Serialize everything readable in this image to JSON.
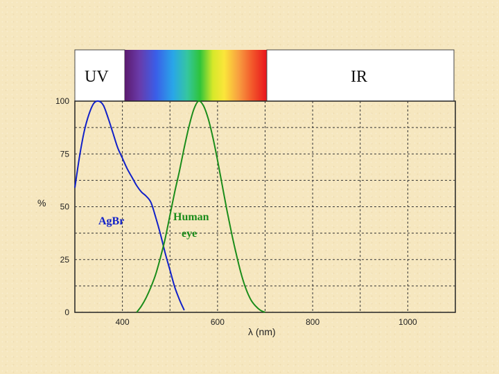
{
  "chart_data": {
    "type": "line",
    "title": "",
    "xlabel": "λ (nm)",
    "ylabel": "%",
    "xlim": [
      300,
      1100
    ],
    "ylim": [
      0,
      100
    ],
    "xticks": [
      400,
      600,
      800,
      1000
    ],
    "yticks": [
      0,
      25,
      50,
      75,
      100
    ],
    "grid": true,
    "spectrum_bands": {
      "uv_label": "UV",
      "ir_label": "IR",
      "visible_range": [
        400,
        700
      ]
    },
    "series": [
      {
        "name": "AgBr",
        "color": "#1020c8",
        "points": [
          [
            300,
            59
          ],
          [
            310,
            74
          ],
          [
            320,
            86
          ],
          [
            330,
            94
          ],
          [
            340,
            99
          ],
          [
            350,
            100
          ],
          [
            360,
            98
          ],
          [
            370,
            92
          ],
          [
            380,
            85
          ],
          [
            390,
            78
          ],
          [
            400,
            73
          ],
          [
            410,
            68
          ],
          [
            420,
            64
          ],
          [
            430,
            60
          ],
          [
            440,
            57
          ],
          [
            450,
            55
          ],
          [
            460,
            52
          ],
          [
            470,
            45
          ],
          [
            480,
            37
          ],
          [
            490,
            28
          ],
          [
            500,
            20
          ],
          [
            510,
            12
          ],
          [
            520,
            6
          ],
          [
            530,
            1
          ]
        ]
      },
      {
        "name": "Human eye",
        "color": "#1a8c1a",
        "points": [
          [
            430,
            0
          ],
          [
            440,
            3
          ],
          [
            450,
            7
          ],
          [
            460,
            12
          ],
          [
            470,
            18
          ],
          [
            480,
            26
          ],
          [
            490,
            35
          ],
          [
            500,
            46
          ],
          [
            510,
            57
          ],
          [
            520,
            67
          ],
          [
            530,
            78
          ],
          [
            540,
            88
          ],
          [
            550,
            96
          ],
          [
            560,
            100
          ],
          [
            570,
            98
          ],
          [
            580,
            92
          ],
          [
            590,
            83
          ],
          [
            600,
            72
          ],
          [
            610,
            60
          ],
          [
            620,
            48
          ],
          [
            630,
            37
          ],
          [
            640,
            27
          ],
          [
            650,
            18
          ],
          [
            660,
            11
          ],
          [
            670,
            6
          ],
          [
            680,
            3
          ],
          [
            690,
            1
          ],
          [
            700,
            0
          ]
        ]
      }
    ],
    "annotations": [
      {
        "text": "AgBr",
        "series": "AgBr"
      },
      {
        "text_lines": [
          "Human",
          "eye"
        ],
        "series": "Human eye"
      }
    ]
  }
}
